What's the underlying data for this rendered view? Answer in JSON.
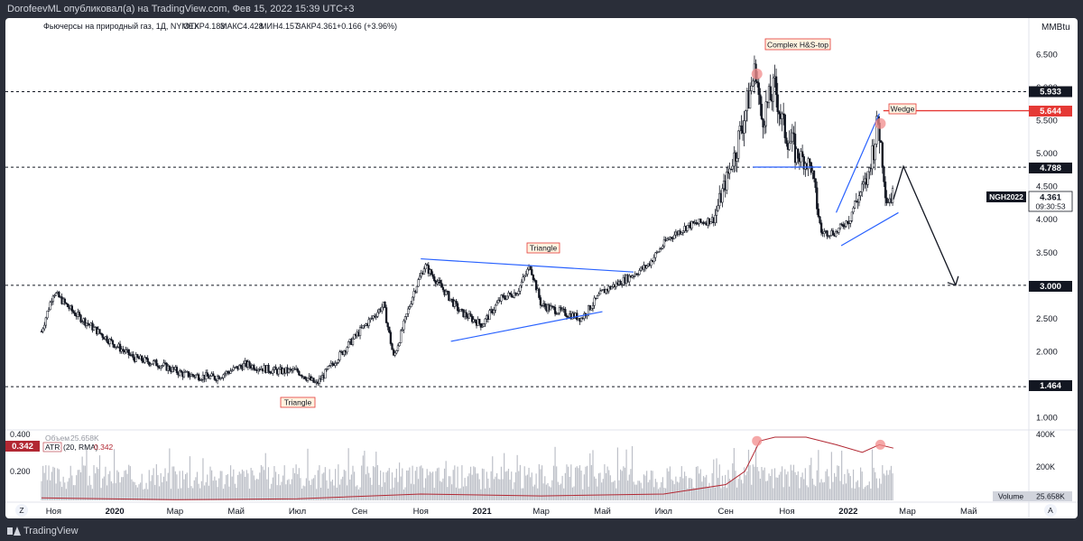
{
  "header": {
    "publisher": "DorofeevML опубликовал(а) на TradingView.com, Фев 15, 2022 15:39 UTC+3"
  },
  "chart_info": {
    "title": "Фьючерсы на природный газ, 1Д, NYMEX",
    "open": "ОТКР4.183",
    "high": "МАКС4.428",
    "low": "МИН4.157",
    "close": "ЗАКР4.361",
    "change": "+0.166 (+3.96%)",
    "unit": "MMBtu",
    "ticker": "NGH2022",
    "last_price": "4.361",
    "countdown": "09:30:53"
  },
  "annotations": {
    "hs": "Complex H&S-top",
    "wedge": "Wedge",
    "tri_mid": "Triangle",
    "tri_low": "Triangle"
  },
  "price_tags": {
    "level1": "5.933",
    "level2": "5.644",
    "level3": "4.788",
    "level4": "3.000",
    "level5": "1.464"
  },
  "indicator": {
    "volume_label": "Объем",
    "volume_value": "25.658K",
    "atr_value_tag": "0.342",
    "atr_name": "ATR",
    "atr_params": "(20, RMA)",
    "atr_value": "0.342",
    "left_ticks": [
      "0.400",
      "0.200"
    ],
    "right_ticks": [
      "400K",
      "200K"
    ],
    "volume_tag_label": "Volume",
    "volume_tag_value": "25.658K"
  },
  "time_axis": {
    "labels": [
      "Ноя",
      "2020",
      "Мар",
      "Май",
      "Июл",
      "Сен",
      "Ноя",
      "2021",
      "Мар",
      "Май",
      "Июл",
      "Сен",
      "Ноя",
      "2022",
      "Мар",
      "Май"
    ],
    "bold": [
      false,
      true,
      false,
      false,
      false,
      false,
      false,
      true,
      false,
      false,
      false,
      false,
      false,
      true,
      false,
      false
    ],
    "left_button": "Z",
    "right_button": "A"
  },
  "footer": {
    "brand": "TradingView"
  },
  "colors": {
    "level_red": "#e53935",
    "trendline_blue": "#2962ff",
    "atr_line": "#b22833",
    "marker_fill": "#f28b8b"
  },
  "chart_data": {
    "type": "line",
    "price_axis_ticks": [
      "6.500",
      "6.000",
      "5.500",
      "5.000",
      "4.500",
      "4.000",
      "3.500",
      "3.000",
      "2.500",
      "2.000",
      "1.500",
      "1.000"
    ],
    "price_axis_ticks_values": [
      6.5,
      6.0,
      5.5,
      5.0,
      4.5,
      4.0,
      3.5,
      3.0,
      2.5,
      2.0,
      1.5,
      1.0
    ],
    "ylim": [
      0.8,
      7.0
    ],
    "x_range": [
      "2019-10-20",
      "2022-06-30"
    ],
    "horizontal_levels": [
      5.933,
      5.644,
      4.788,
      3.0,
      1.464
    ],
    "price_series_monthly": {
      "x": [
        "2019-10-20",
        "2019-11-01",
        "2019-11-20",
        "2019-12-15",
        "2020-01-01",
        "2020-01-20",
        "2020-02-15",
        "2020-03-10",
        "2020-04-10",
        "2020-05-10",
        "2020-06-10",
        "2020-07-01",
        "2020-07-20",
        "2020-08-10",
        "2020-09-01",
        "2020-09-25",
        "2020-10-05",
        "2020-10-25",
        "2020-11-05",
        "2020-11-20",
        "2020-12-10",
        "2021-01-01",
        "2021-01-20",
        "2021-02-05",
        "2021-02-18",
        "2021-03-01",
        "2021-03-20",
        "2021-04-10",
        "2021-05-01",
        "2021-05-25",
        "2021-06-15",
        "2021-07-05",
        "2021-07-25",
        "2021-08-20",
        "2021-09-10",
        "2021-09-20",
        "2021-10-01",
        "2021-10-06",
        "2021-10-20",
        "2021-10-28",
        "2021-11-10",
        "2021-11-25",
        "2021-12-05",
        "2021-12-20",
        "2022-01-01",
        "2022-01-10",
        "2022-01-20",
        "2022-01-31",
        "2022-02-08",
        "2022-02-15"
      ],
      "y": [
        2.3,
        2.9,
        2.6,
        2.3,
        2.1,
        1.9,
        1.8,
        1.65,
        1.6,
        1.8,
        1.7,
        1.7,
        1.5,
        1.9,
        2.3,
        2.7,
        1.9,
        2.9,
        3.3,
        3.0,
        2.6,
        2.4,
        2.8,
        2.9,
        3.3,
        2.7,
        2.6,
        2.5,
        2.9,
        3.1,
        3.3,
        3.7,
        3.9,
        4.0,
        5.0,
        5.6,
        6.3,
        5.5,
        6.0,
        5.4,
        5.0,
        4.8,
        3.8,
        3.8,
        4.0,
        4.3,
        4.6,
        5.5,
        4.3,
        4.36
      ]
    },
    "trendlines": [
      {
        "name": "h&s-neckline",
        "from": [
          "2021-09-28",
          4.79
        ],
        "to": [
          "2021-12-05",
          4.79
        ]
      },
      {
        "name": "triangle-mid-upper",
        "from": [
          "2020-11-01",
          3.4
        ],
        "to": [
          "2021-06-01",
          3.2
        ]
      },
      {
        "name": "triangle-mid-lower",
        "from": [
          "2020-12-01",
          2.15
        ],
        "to": [
          "2021-05-01",
          2.6
        ]
      },
      {
        "name": "wedge-upper",
        "from": [
          "2021-12-20",
          4.1
        ],
        "to": [
          "2022-02-01",
          5.6
        ]
      },
      {
        "name": "wedge-lower",
        "from": [
          "2021-12-25",
          3.6
        ],
        "to": [
          "2022-02-20",
          4.1
        ]
      }
    ],
    "projection": {
      "x": [
        "2022-02-15",
        "2022-02-25",
        "2022-04-18"
      ],
      "y": [
        4.3,
        4.8,
        3.0
      ]
    },
    "markers": [
      {
        "x": "2021-10-02",
        "y": 6.2
      },
      {
        "x": "2022-02-02",
        "y": 5.45
      }
    ],
    "atr_series": {
      "x": [
        "2019-10-20",
        "2020-03-01",
        "2020-07-01",
        "2020-11-01",
        "2021-03-01",
        "2021-07-01",
        "2021-09-01",
        "2021-09-20",
        "2021-10-05",
        "2021-10-20",
        "2021-11-20",
        "2021-12-20",
        "2022-01-15",
        "2022-02-01",
        "2022-02-15"
      ],
      "y": [
        0.08,
        0.07,
        0.075,
        0.1,
        0.09,
        0.1,
        0.15,
        0.22,
        0.38,
        0.4,
        0.4,
        0.36,
        0.32,
        0.36,
        0.342
      ]
    },
    "volume_approx": "bars 0–400K daily"
  }
}
